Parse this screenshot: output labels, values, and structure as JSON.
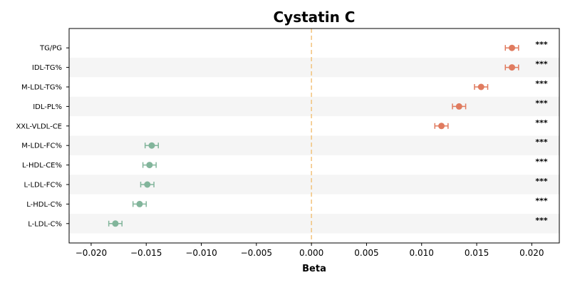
{
  "chart_data": {
    "type": "scatter",
    "title": "Cystatin C",
    "xlabel": "Beta",
    "ylabel": "",
    "xlim": [
      -0.022,
      0.0225
    ],
    "xticks": [
      -0.02,
      -0.015,
      -0.01,
      -0.005,
      0.0,
      0.005,
      0.01,
      0.015,
      0.02
    ],
    "xtick_labels": [
      "−0.020",
      "−0.015",
      "−0.010",
      "−0.005",
      "0.000",
      "0.005",
      "0.010",
      "0.015",
      "0.020"
    ],
    "reference_line": 0.0,
    "grid": false,
    "colors": {
      "positive": "#E07B5F",
      "negative": "#82B59B",
      "reference": "#F2C27B",
      "band": "#F5F5F5"
    },
    "points": [
      {
        "label": "TG/PG",
        "beta": 0.0182,
        "ci": [
          0.0176,
          0.0188
        ],
        "sig": "***"
      },
      {
        "label": "IDL-TG%",
        "beta": 0.0182,
        "ci": [
          0.0176,
          0.0188
        ],
        "sig": "***"
      },
      {
        "label": "M-LDL-TG%",
        "beta": 0.0154,
        "ci": [
          0.0148,
          0.016
        ],
        "sig": "***"
      },
      {
        "label": "IDL-PL%",
        "beta": 0.0134,
        "ci": [
          0.0128,
          0.014
        ],
        "sig": "***"
      },
      {
        "label": "XXL-VLDL-CE",
        "beta": 0.0118,
        "ci": [
          0.0112,
          0.0124
        ],
        "sig": "***"
      },
      {
        "label": "M-LDL-FC%",
        "beta": -0.0145,
        "ci": [
          -0.0151,
          -0.0139
        ],
        "sig": "***"
      },
      {
        "label": "L-HDL-CE%",
        "beta": -0.0147,
        "ci": [
          -0.0153,
          -0.0141
        ],
        "sig": "***"
      },
      {
        "label": "L-LDL-FC%",
        "beta": -0.0149,
        "ci": [
          -0.0155,
          -0.0143
        ],
        "sig": "***"
      },
      {
        "label": "L-HDL-C%",
        "beta": -0.0156,
        "ci": [
          -0.0162,
          -0.015
        ],
        "sig": "***"
      },
      {
        "label": "L-LDL-C%",
        "beta": -0.0178,
        "ci": [
          -0.0184,
          -0.0172
        ],
        "sig": "***"
      }
    ]
  }
}
